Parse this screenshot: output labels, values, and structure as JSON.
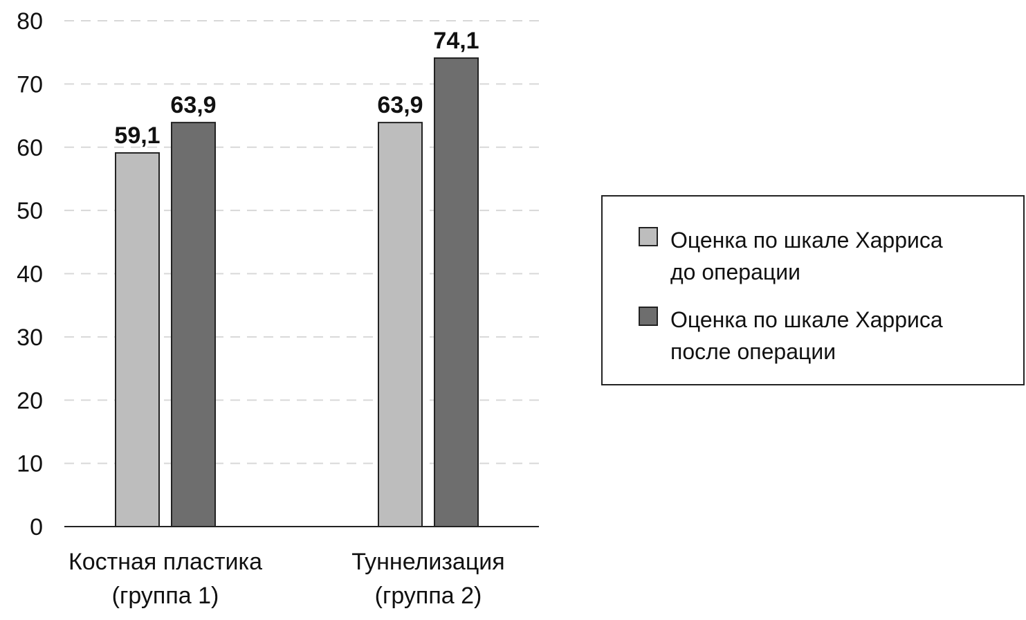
{
  "chart_data": {
    "type": "bar",
    "categories": [
      "Костная пластика (группа 1)",
      "Туннелизация (группа 2)"
    ],
    "category_lines": [
      [
        "Костная пластика",
        "(группа 1)"
      ],
      [
        "Туннелизация",
        "(группа 2)"
      ]
    ],
    "series": [
      {
        "name": "Оценка по шкале Харриса до операции",
        "values": [
          59.1,
          63.9
        ],
        "labels": [
          "59,1",
          "63,9"
        ],
        "color": "#bdbdbd"
      },
      {
        "name": "Оценка по шкале Харриса после операции",
        "values": [
          63.9,
          74.1
        ],
        "labels": [
          "63,9",
          "74,1"
        ],
        "color": "#6e6e6e"
      }
    ],
    "ylim": [
      0,
      80
    ],
    "yticks": [
      0,
      10,
      20,
      30,
      40,
      50,
      60,
      70,
      80
    ],
    "grid": true,
    "legend_position": "right",
    "title": "",
    "xlabel": "",
    "ylabel": ""
  },
  "legend": {
    "items": [
      {
        "lines": [
          "Оценка по шкале Харриса",
          "до операции"
        ],
        "color": "#bdbdbd"
      },
      {
        "lines": [
          "Оценка по шкале Харриса",
          "после операции"
        ],
        "color": "#6e6e6e"
      }
    ]
  }
}
